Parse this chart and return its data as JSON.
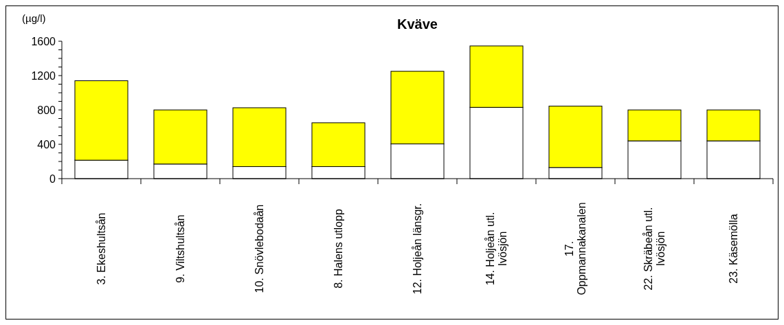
{
  "chart_data": {
    "type": "bar",
    "title": "Kväve",
    "ylabel": "(µg/l)",
    "stacked": true,
    "categories": [
      "3. Ekeshultsån",
      "9. Viltshultsån",
      "10. Snövlebodaån",
      "8. Halens utlopp",
      "12. Holjeån länsgr.",
      "14. Holjeån utl. Ivösjön",
      "17. Oppmannakanalen",
      "22. Skräbeån utl. Ivösjön",
      "23. Käsemölla"
    ],
    "series": [
      {
        "color": "#ffffff",
        "values": [
          215,
          170,
          140,
          140,
          405,
          830,
          130,
          440,
          440
        ]
      },
      {
        "color": "#ffff00",
        "values": [
          925,
          630,
          685,
          510,
          845,
          715,
          715,
          360,
          360
        ]
      }
    ],
    "ylim": [
      0,
      1600
    ],
    "yticks": [
      0,
      {
        "value": 100,
        "label": null
      },
      {
        "value": 200,
        "label": null
      },
      {
        "value": 300,
        "label": null
      },
      400,
      {
        "value": 500,
        "label": null
      },
      {
        "value": 600,
        "label": null
      },
      {
        "value": 700,
        "label": null
      },
      800,
      {
        "value": 900,
        "label": null
      },
      {
        "value": 1000,
        "label": null
      },
      {
        "value": 1100,
        "label": null
      },
      1200,
      {
        "value": 1300,
        "label": null
      },
      {
        "value": 1400,
        "label": null
      },
      {
        "value": 1500,
        "label": null
      },
      1600
    ],
    "grid": false
  }
}
